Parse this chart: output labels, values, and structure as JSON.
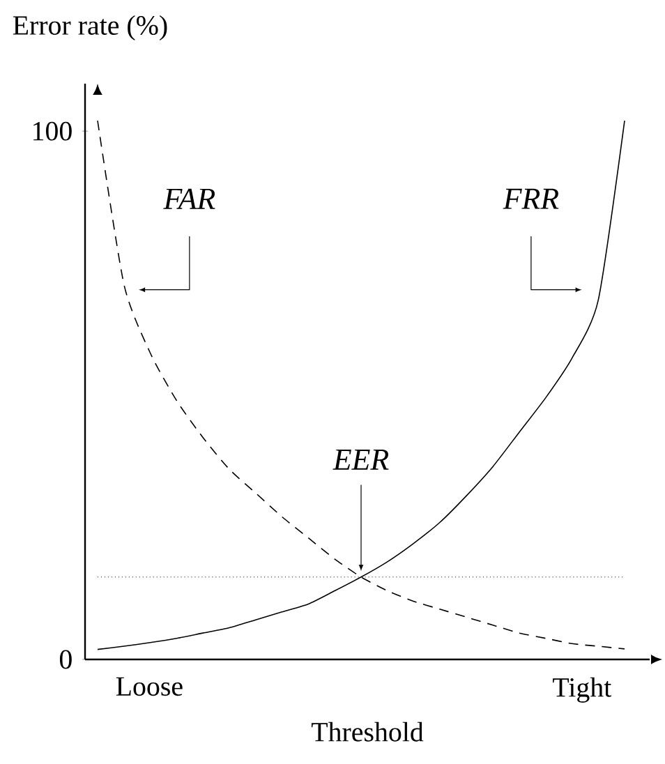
{
  "chart_data": {
    "type": "line",
    "xlabel": "Threshold",
    "ylabel": "Error rate (%)",
    "categories": [
      null,
      null,
      null,
      null,
      null,
      null,
      null,
      null,
      null,
      null,
      null,
      null,
      null,
      null,
      null,
      null,
      null,
      null,
      null,
      null,
      null
    ],
    "ylim": [
      0,
      109
    ],
    "yticks": [
      0,
      100
    ],
    "legend": false,
    "series": [
      {
        "name": "FAR",
        "color": "#000000",
        "line_style": "dashed",
        "values": [
          102,
          71,
          58,
          49,
          42,
          36,
          31.5,
          27,
          23,
          19,
          15.6,
          13,
          11,
          9.5,
          8,
          6.5,
          5,
          4,
          3,
          2.5,
          2
        ]
      },
      {
        "name": "FRR",
        "color": "#000000",
        "line_style": "solid",
        "values": [
          1.9,
          2.5,
          3.2,
          4,
          5,
          6,
          7.5,
          9,
          10.5,
          13,
          15.6,
          18.5,
          22,
          26,
          31,
          36.5,
          43,
          49.5,
          57,
          68,
          102
        ]
      }
    ],
    "ref_lines": [
      {
        "axis": "y",
        "value": 15.6,
        "line_style": "dotted"
      }
    ],
    "annotations": [
      {
        "text": "EER",
        "y": 15.6
      },
      "Loose",
      "Tight"
    ]
  }
}
